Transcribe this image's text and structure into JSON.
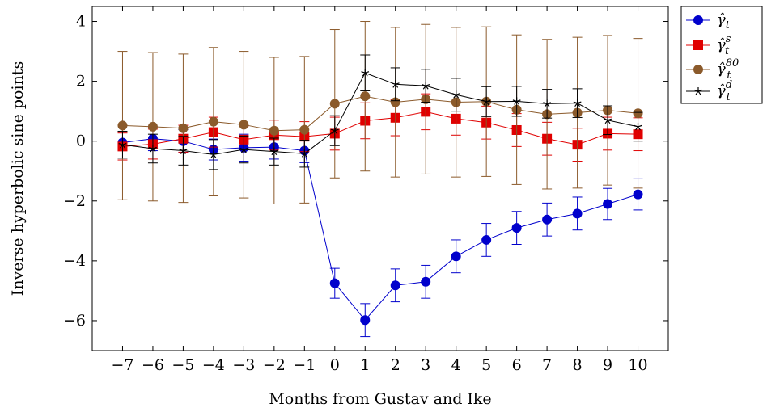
{
  "chart_data": {
    "type": "line",
    "title": "",
    "xlabel": "Months from Gustav and Ike",
    "ylabel": "Inverse hyperbolic sine points",
    "x": [
      -7,
      -6,
      -5,
      -4,
      -3,
      -2,
      -1,
      0,
      1,
      2,
      3,
      4,
      5,
      6,
      7,
      8,
      9,
      10
    ],
    "x_tick_labels": [
      "−7",
      "−6",
      "−5",
      "−4",
      "−3",
      "−2",
      "−1",
      "0",
      "1",
      "2",
      "3",
      "4",
      "5",
      "6",
      "7",
      "8",
      "9",
      "10"
    ],
    "y_ticks": [
      4,
      2,
      0,
      -2,
      -4,
      -6
    ],
    "y_tick_labels": [
      "4",
      "2",
      "0",
      "−2",
      "−4",
      "−6"
    ],
    "xlim": [
      -8,
      11
    ],
    "ylim": [
      -7,
      4.5
    ],
    "grid": false,
    "legend_position": "outside-top-right",
    "series": [
      {
        "name": "γ̂t",
        "legend": {
          "base": "γ̂",
          "sub": "t",
          "sup": ""
        },
        "color": "#0000cc",
        "marker": "circle",
        "values": [
          -0.05,
          0.08,
          0.0,
          -0.28,
          -0.22,
          -0.2,
          -0.32,
          -4.75,
          -5.98,
          -4.82,
          -4.7,
          -3.85,
          -3.3,
          -2.9,
          -2.62,
          -2.42,
          -2.1,
          -1.78
        ],
        "error": [
          0.35,
          0.4,
          0.38,
          0.35,
          0.45,
          0.4,
          0.4,
          0.5,
          0.55,
          0.55,
          0.55,
          0.55,
          0.55,
          0.55,
          0.55,
          0.55,
          0.52,
          0.52
        ]
      },
      {
        "name": "γ̂ts",
        "legend": {
          "base": "γ̂",
          "sub": "t",
          "sup": "s"
        },
        "color": "#e00000",
        "marker": "square",
        "values": [
          -0.18,
          -0.1,
          0.08,
          0.3,
          0.05,
          0.2,
          0.15,
          0.25,
          0.68,
          0.78,
          0.98,
          0.75,
          0.62,
          0.37,
          0.08,
          -0.12,
          0.25,
          0.23
        ],
        "error": [
          0.45,
          0.5,
          0.45,
          0.5,
          0.45,
          0.5,
          0.5,
          0.55,
          0.6,
          0.6,
          0.6,
          0.55,
          0.55,
          0.55,
          0.55,
          0.55,
          0.55,
          0.55
        ]
      },
      {
        "name": "γ̂t80",
        "legend": {
          "base": "γ̂",
          "sub": "t",
          "sup": "80"
        },
        "color": "#8b5a2b",
        "marker": "circle",
        "values": [
          0.52,
          0.48,
          0.43,
          0.65,
          0.55,
          0.35,
          0.38,
          1.25,
          1.5,
          1.3,
          1.4,
          1.3,
          1.32,
          1.05,
          0.9,
          0.95,
          1.03,
          0.93
        ],
        "error": [
          2.48,
          2.48,
          2.48,
          2.48,
          2.45,
          2.45,
          2.45,
          2.48,
          2.5,
          2.5,
          2.5,
          2.5,
          2.5,
          2.5,
          2.5,
          2.52,
          2.5,
          2.5
        ]
      },
      {
        "name": "γ̂td",
        "legend": {
          "base": "γ̂",
          "sub": "t",
          "sup": "d"
        },
        "color": "#000000",
        "marker": "star",
        "values": [
          -0.12,
          -0.25,
          -0.32,
          -0.45,
          -0.28,
          -0.35,
          -0.42,
          0.35,
          2.28,
          1.9,
          1.85,
          1.55,
          1.32,
          1.33,
          1.25,
          1.27,
          0.7,
          0.48
        ],
        "error": [
          0.45,
          0.48,
          0.48,
          0.5,
          0.45,
          0.45,
          0.45,
          0.5,
          0.6,
          0.55,
          0.55,
          0.55,
          0.5,
          0.5,
          0.48,
          0.48,
          0.48,
          0.48
        ]
      }
    ]
  }
}
